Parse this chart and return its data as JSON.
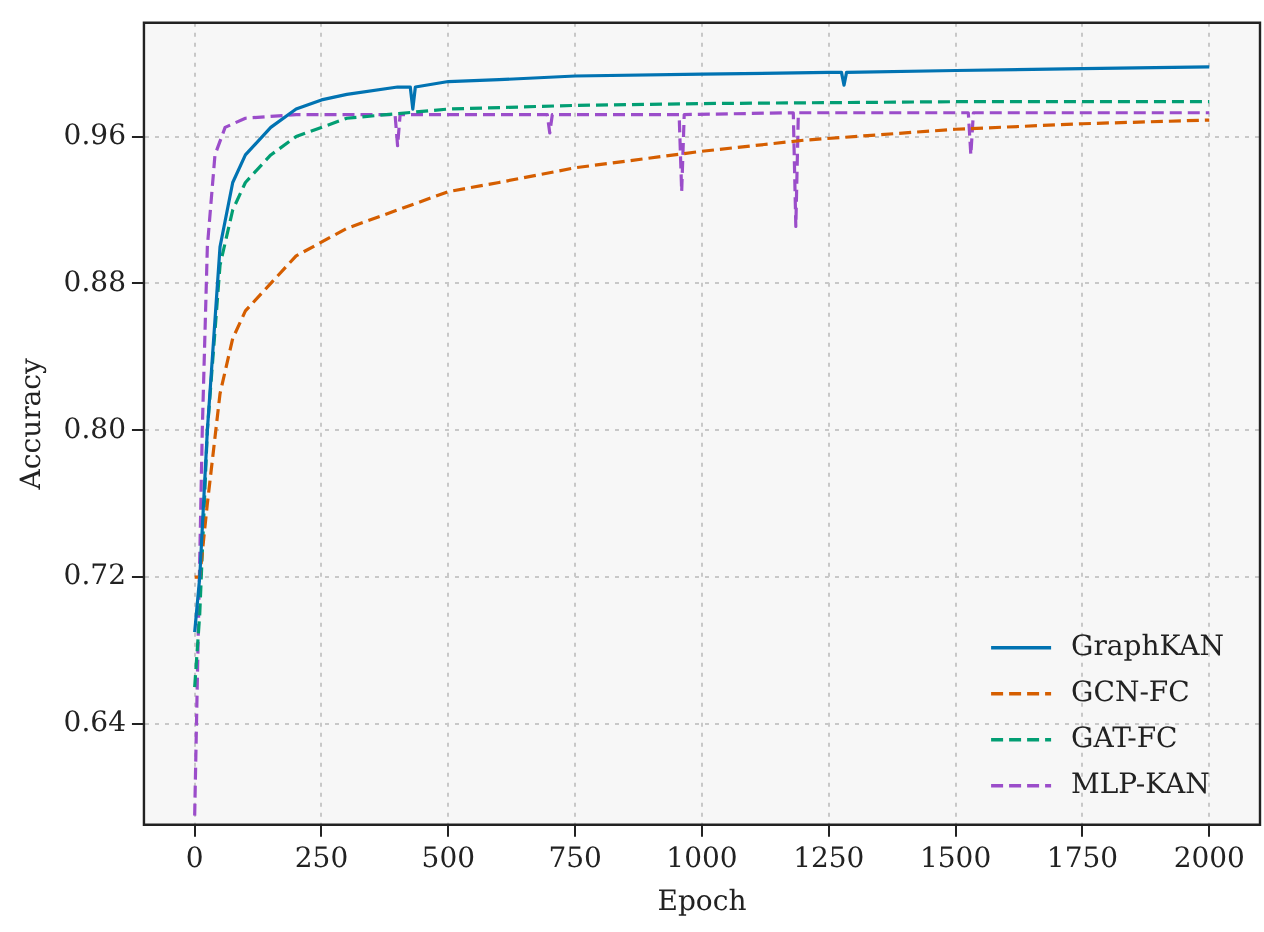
{
  "chart_data": {
    "type": "line",
    "xlabel": "Epoch",
    "ylabel": "Accuracy",
    "xlim": [
      -100,
      2100
    ],
    "xticks": [
      0,
      250,
      500,
      750,
      1000,
      1250,
      1500,
      1750,
      2000
    ],
    "ylim": [
      0.585,
      1.022
    ],
    "yticks": [
      {
        "value": 0.64,
        "label": "0.64"
      },
      {
        "value": 0.72,
        "label": "0.72"
      },
      {
        "value": 0.8,
        "label": "0.80"
      },
      {
        "value": 0.88,
        "label": "0.88"
      },
      {
        "value": 0.96,
        "label": "0.96"
      }
    ],
    "grid": true,
    "legend": "bottom right",
    "marker": "none",
    "series": [
      {
        "name": "GraphKAN",
        "color": "#0173b2",
        "line_style": "solid",
        "x": [
          0,
          10,
          25,
          50,
          75,
          100,
          150,
          200,
          250,
          300,
          400,
          425,
          430,
          435,
          500,
          600,
          750,
          1000,
          1250,
          1275,
          1280,
          1285,
          1500,
          1750,
          2000
        ],
        "values": [
          0.69,
          0.72,
          0.8,
          0.9,
          0.935,
          0.95,
          0.965,
          0.975,
          0.98,
          0.983,
          0.987,
          0.987,
          0.975,
          0.987,
          0.99,
          0.991,
          0.993,
          0.994,
          0.995,
          0.995,
          0.988,
          0.995,
          0.996,
          0.997,
          0.998
        ]
      },
      {
        "name": "GCN-FC",
        "color": "#d55e00",
        "line_style": "dashed",
        "x": [
          0,
          10,
          25,
          50,
          75,
          100,
          150,
          200,
          300,
          400,
          500,
          600,
          750,
          1000,
          1200,
          1500,
          1750,
          2000
        ],
        "values": [
          0.72,
          0.72,
          0.76,
          0.82,
          0.85,
          0.865,
          0.88,
          0.895,
          0.91,
          0.92,
          0.93,
          0.935,
          0.943,
          0.952,
          0.958,
          0.964,
          0.967,
          0.969
        ]
      },
      {
        "name": "GAT-FC",
        "color": "#029e73",
        "line_style": "dashed",
        "x": [
          0,
          10,
          25,
          50,
          75,
          100,
          150,
          200,
          300,
          500,
          750,
          1000,
          1500,
          2000
        ],
        "values": [
          0.66,
          0.7,
          0.8,
          0.89,
          0.92,
          0.935,
          0.95,
          0.96,
          0.97,
          0.975,
          0.977,
          0.978,
          0.979,
          0.979
        ]
      },
      {
        "name": "MLP-KAN",
        "color": "#9b4dca",
        "line_style": "dashed",
        "x": [
          0,
          5,
          15,
          25,
          40,
          60,
          100,
          200,
          395,
          400,
          405,
          695,
          700,
          705,
          955,
          960,
          965,
          1180,
          1185,
          1190,
          1525,
          1530,
          1535,
          2000
        ],
        "values": [
          0.59,
          0.66,
          0.8,
          0.9,
          0.95,
          0.965,
          0.97,
          0.972,
          0.972,
          0.955,
          0.972,
          0.972,
          0.962,
          0.972,
          0.972,
          0.93,
          0.972,
          0.973,
          0.911,
          0.973,
          0.973,
          0.95,
          0.973,
          0.973
        ]
      }
    ]
  }
}
